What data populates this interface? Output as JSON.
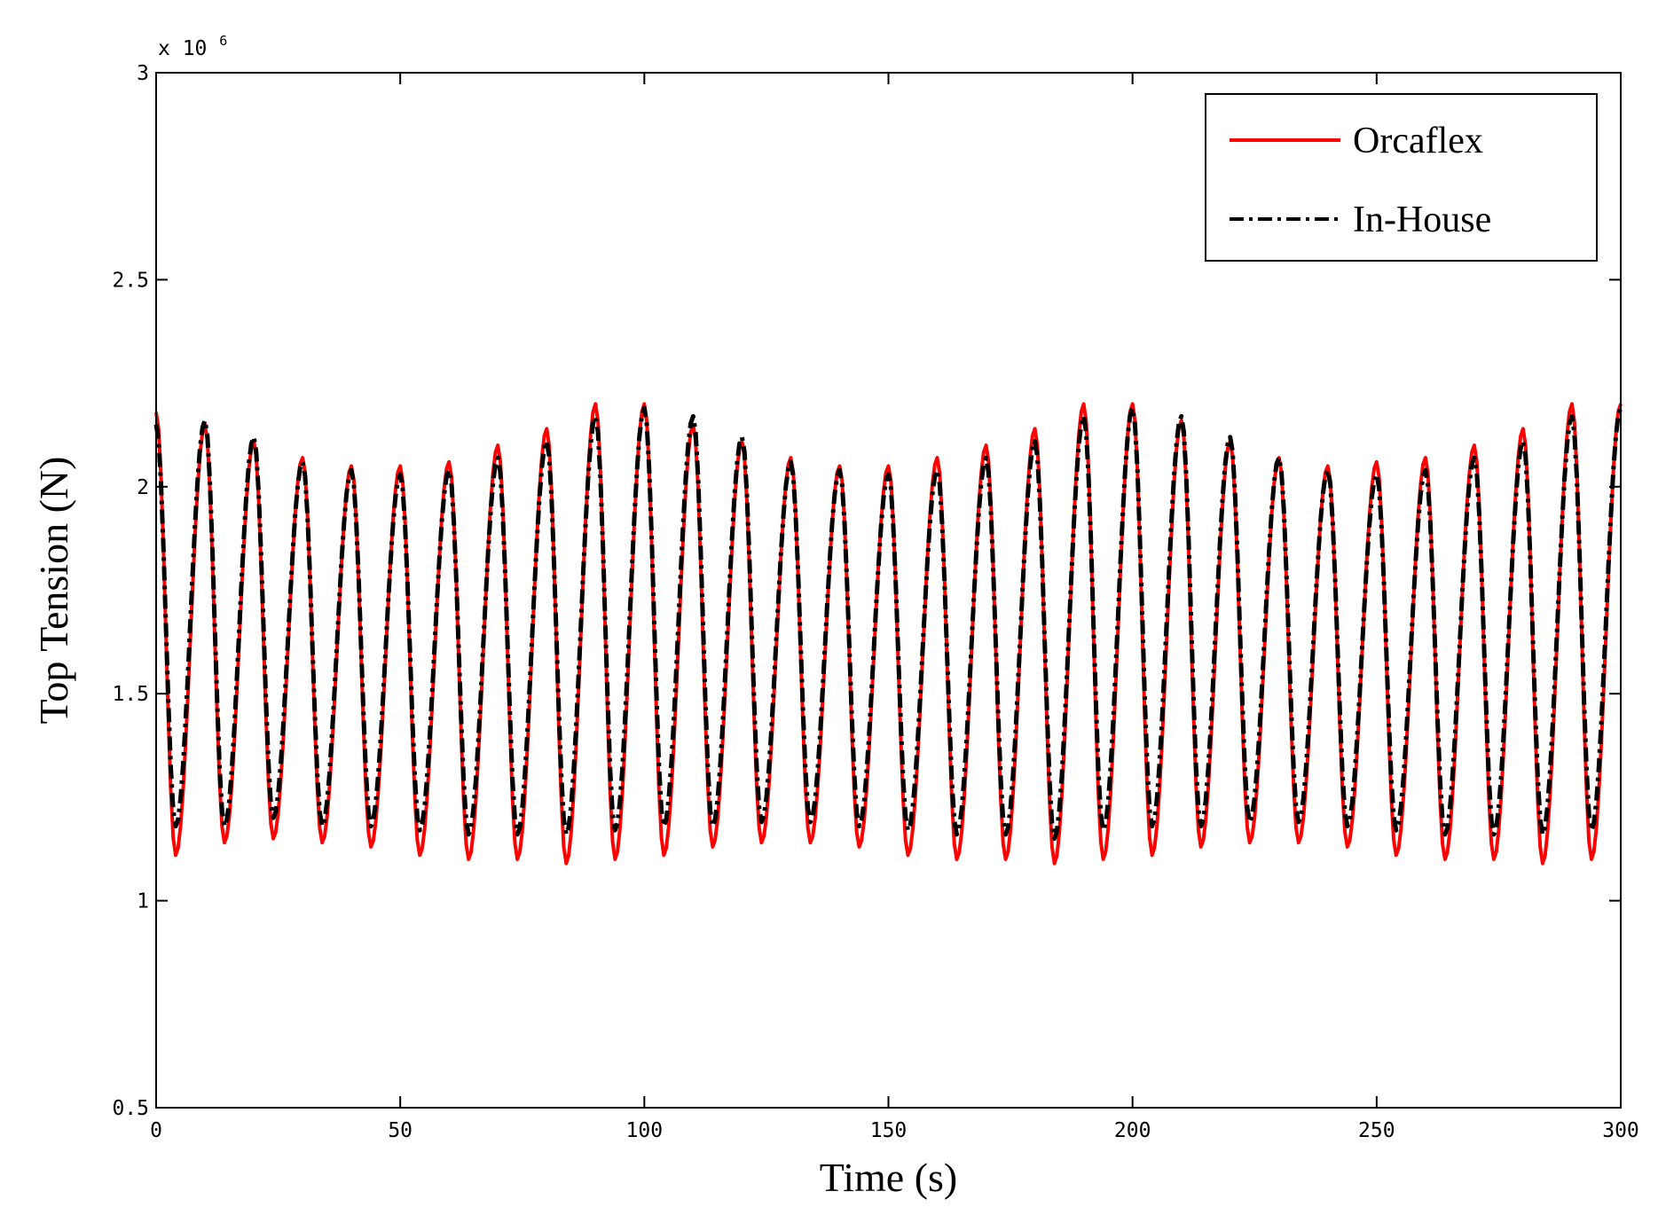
{
  "chart_data": {
    "type": "line",
    "xlabel": "Time (s)",
    "ylabel": "Top Tension (N)",
    "xlim": [
      0,
      300
    ],
    "ylim": [
      500000,
      3000000
    ],
    "x_ticks": [
      "0",
      "50",
      "100",
      "150",
      "200",
      "250",
      "300"
    ],
    "y_ticks": [
      "0.5",
      "1",
      "1.5",
      "2",
      "2.5",
      "3"
    ],
    "y_multiplier": {
      "base": "x 10",
      "exponent": "6"
    },
    "grid": false,
    "legend_position": "top-right",
    "sample_step": 0.5,
    "series": [
      {
        "name": "Orcaflex",
        "color": "#ff0000",
        "style": "solid",
        "peak_times": [
          0,
          10,
          20,
          30,
          40,
          50,
          60,
          70,
          80,
          90,
          100,
          110,
          120,
          130,
          140,
          150,
          160,
          170,
          180,
          190,
          200,
          210,
          220,
          230,
          240,
          250,
          260,
          270,
          280,
          290,
          300
        ],
        "peak_values": [
          2180000,
          2150000,
          2110000,
          2070000,
          2050000,
          2050000,
          2060000,
          2100000,
          2140000,
          2200000,
          2200000,
          2150000,
          2110000,
          2070000,
          2050000,
          2050000,
          2070000,
          2100000,
          2140000,
          2200000,
          2200000,
          2160000,
          2110000,
          2070000,
          2050000,
          2060000,
          2070000,
          2100000,
          2140000,
          2200000,
          2200000
        ],
        "trough_times": [
          4,
          14,
          24,
          34,
          44,
          54,
          64,
          74,
          84,
          94,
          104,
          114,
          124,
          134,
          144,
          154,
          164,
          174,
          184,
          194,
          204,
          214,
          224,
          234,
          244,
          254,
          264,
          274,
          284,
          294
        ],
        "trough_values": [
          1110000,
          1140000,
          1150000,
          1140000,
          1130000,
          1110000,
          1100000,
          1100000,
          1090000,
          1100000,
          1110000,
          1130000,
          1140000,
          1140000,
          1130000,
          1110000,
          1100000,
          1100000,
          1090000,
          1100000,
          1110000,
          1130000,
          1140000,
          1140000,
          1130000,
          1110000,
          1100000,
          1100000,
          1090000,
          1100000
        ]
      },
      {
        "name": "In-House",
        "color": "#000000",
        "style": "dash-dot",
        "peak_times": [
          0,
          10,
          20,
          30,
          40,
          50,
          60,
          70,
          80,
          90,
          100,
          110,
          120,
          130,
          140,
          150,
          160,
          170,
          180,
          190,
          200,
          210,
          220,
          230,
          240,
          250,
          260,
          270,
          280,
          290,
          300
        ],
        "peak_values": [
          2150000,
          2160000,
          2120000,
          2060000,
          2040000,
          2030000,
          2040000,
          2070000,
          2110000,
          2170000,
          2190000,
          2170000,
          2120000,
          2060000,
          2040000,
          2030000,
          2040000,
          2070000,
          2110000,
          2170000,
          2190000,
          2170000,
          2120000,
          2070000,
          2040000,
          2030000,
          2040000,
          2070000,
          2110000,
          2170000,
          2190000
        ],
        "trough_times": [
          4,
          14,
          24,
          34,
          44,
          54,
          64,
          74,
          84,
          94,
          104,
          114,
          124,
          134,
          144,
          154,
          164,
          174,
          184,
          194,
          204,
          214,
          224,
          234,
          244,
          254,
          264,
          274,
          284,
          294
        ],
        "trough_values": [
          1180000,
          1180000,
          1200000,
          1180000,
          1180000,
          1170000,
          1160000,
          1160000,
          1160000,
          1170000,
          1180000,
          1180000,
          1190000,
          1190000,
          1180000,
          1170000,
          1160000,
          1160000,
          1150000,
          1170000,
          1180000,
          1180000,
          1190000,
          1190000,
          1180000,
          1170000,
          1160000,
          1160000,
          1160000,
          1170000
        ]
      }
    ]
  }
}
